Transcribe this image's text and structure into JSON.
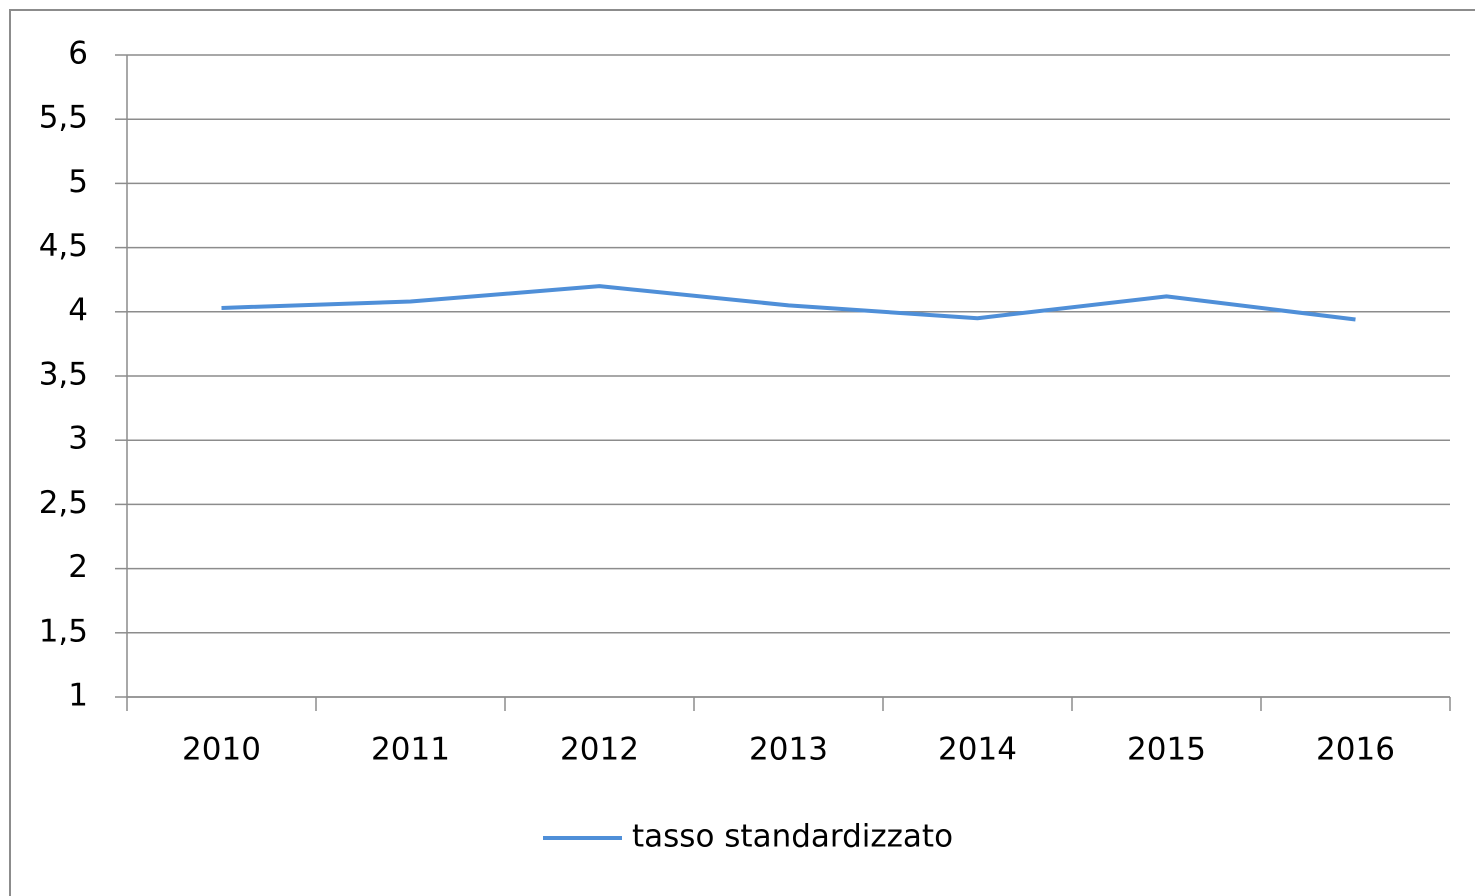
{
  "chart_data": {
    "type": "line",
    "categories": [
      "2010",
      "2011",
      "2012",
      "2013",
      "2014",
      "2015",
      "2016"
    ],
    "series": [
      {
        "name": "tasso standardizzato",
        "color": "#4f8fd8",
        "values": [
          4.03,
          4.08,
          4.2,
          4.05,
          3.95,
          4.12,
          3.94
        ]
      }
    ],
    "ylim": [
      1,
      6
    ],
    "yticks": [
      1,
      {
        "value": 1.5,
        "label": "1,5"
      },
      2,
      {
        "value": 2.5,
        "label": "2,5"
      },
      3,
      {
        "value": 3.5,
        "label": "3,5"
      },
      4,
      {
        "value": 4.5,
        "label": "4,5"
      },
      5,
      {
        "value": 5.5,
        "label": "5,5"
      },
      6
    ],
    "grid": true,
    "legend": "bottom"
  }
}
